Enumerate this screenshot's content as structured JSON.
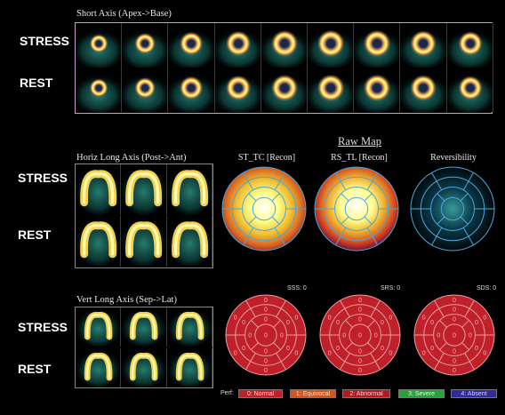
{
  "short_axis": {
    "title": "Short Axis (Apex->Base)",
    "stress_label": "STRESS",
    "rest_label": "REST"
  },
  "horiz_long_axis": {
    "title": "Horiz Long Axis (Post->Ant)",
    "stress_label": "STRESS",
    "rest_label": "REST"
  },
  "vert_long_axis": {
    "title": "Vert Long Axis (Sep->Lat)",
    "stress_label": "STRESS",
    "rest_label": "REST"
  },
  "raw_map": {
    "title": "Raw Map",
    "maps": [
      {
        "title": "ST_TC [Recon]"
      },
      {
        "title": "RS_TL [Recon]"
      },
      {
        "title": "Reversibility"
      }
    ]
  },
  "scores": {
    "sss": "SSS: 0",
    "srs": "SRS: 0",
    "sds": "SDS: 0"
  },
  "segment_value": "0",
  "legend": {
    "label": "Perf:",
    "items": [
      {
        "text": "0: Normal",
        "color": "#c0202a",
        "text_color": "#ffd0d0"
      },
      {
        "text": "1: Equivocal",
        "color": "#d4551c",
        "text_color": "#ffe0c0"
      },
      {
        "text": "2: Abnormal",
        "color": "#b01a20",
        "text_color": "#ffc8c8"
      },
      {
        "text": "3: Severe",
        "color": "#28a040",
        "text_color": "#d0ffd0"
      },
      {
        "text": "4: Absent",
        "color": "#302a9a",
        "text_color": "#d0d0ff"
      }
    ]
  }
}
